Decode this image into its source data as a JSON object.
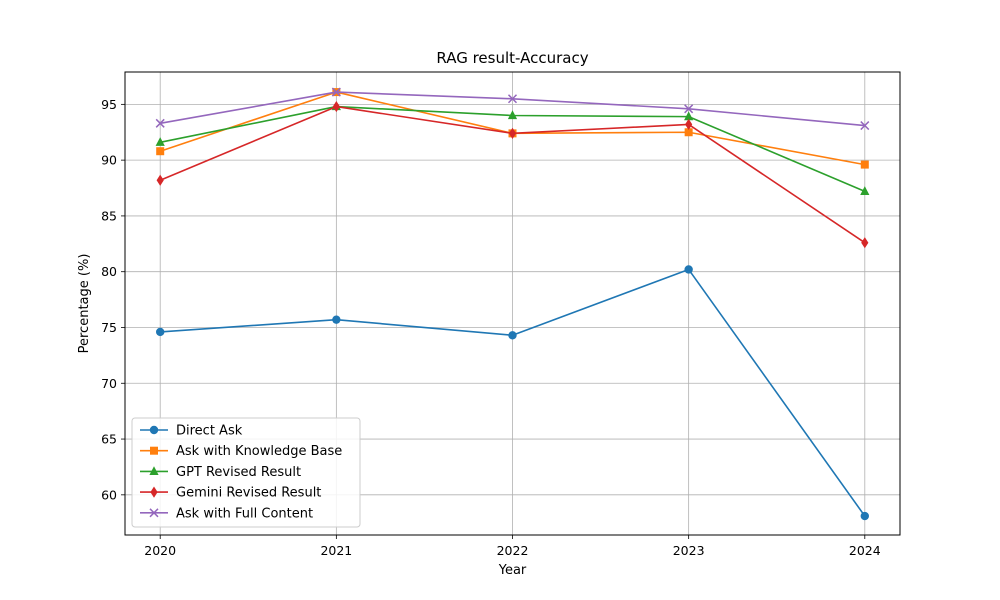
{
  "chart_data": {
    "type": "line",
    "title": "RAG result-Accuracy",
    "xlabel": "Year",
    "ylabel": "Percentage (%)",
    "x": [
      "2020",
      "2021",
      "2022",
      "2023",
      "2024"
    ],
    "ylim": [
      56.4,
      97.9
    ],
    "yticks": [
      60,
      65,
      70,
      75,
      80,
      85,
      90,
      95
    ],
    "grid": true,
    "legend_position": "lower-left",
    "series": [
      {
        "name": "Direct Ask",
        "color": "#1f77b4",
        "marker": "circle",
        "values": [
          74.6,
          75.7,
          74.3,
          80.2,
          58.1
        ]
      },
      {
        "name": "Ask with Knowledge Base",
        "color": "#ff7f0e",
        "marker": "square",
        "values": [
          90.8,
          96.1,
          92.4,
          92.5,
          89.6
        ]
      },
      {
        "name": "GPT Revised Result",
        "color": "#2ca02c",
        "marker": "triangle",
        "values": [
          91.6,
          94.8,
          94.0,
          93.9,
          87.2
        ]
      },
      {
        "name": "Gemini Revised Result",
        "color": "#d62728",
        "marker": "diamond",
        "values": [
          88.2,
          94.8,
          92.4,
          93.2,
          82.6
        ]
      },
      {
        "name": "Ask with Full Content",
        "color": "#9467bd",
        "marker": "x",
        "values": [
          93.3,
          96.1,
          95.5,
          94.6,
          93.1
        ]
      }
    ]
  }
}
